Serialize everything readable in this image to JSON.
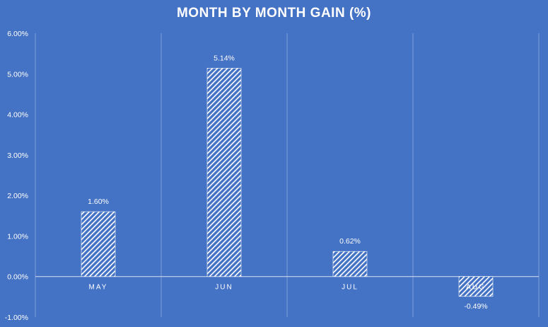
{
  "chart_data": {
    "type": "bar",
    "title": "MONTH BY MONTH GAIN (%)",
    "xlabel": "",
    "ylabel": "",
    "categories": [
      "MAY",
      "JUN",
      "JUL",
      "AUG"
    ],
    "values": [
      1.6,
      5.14,
      0.62,
      -0.49
    ],
    "data_labels": [
      "1.60%",
      "5.14%",
      "0.62%",
      "-0.49%"
    ],
    "ylim": [
      -1,
      6
    ],
    "yticks": [
      -1,
      0,
      1,
      2,
      3,
      4,
      5,
      6
    ],
    "ytick_labels": [
      "-1.00%",
      "0.00%",
      "1.00%",
      "2.00%",
      "3.00%",
      "4.00%",
      "5.00%",
      "6.00%"
    ],
    "grid": "vertical category separators",
    "legend": "none",
    "bar_fill": "white diagonal hatch",
    "colors": {
      "background": "#4472C4",
      "bar": "#FFFFFF",
      "text": "#FFFFFF",
      "gridline": "#8EA9DB",
      "axis": "#D9E1F2"
    }
  }
}
